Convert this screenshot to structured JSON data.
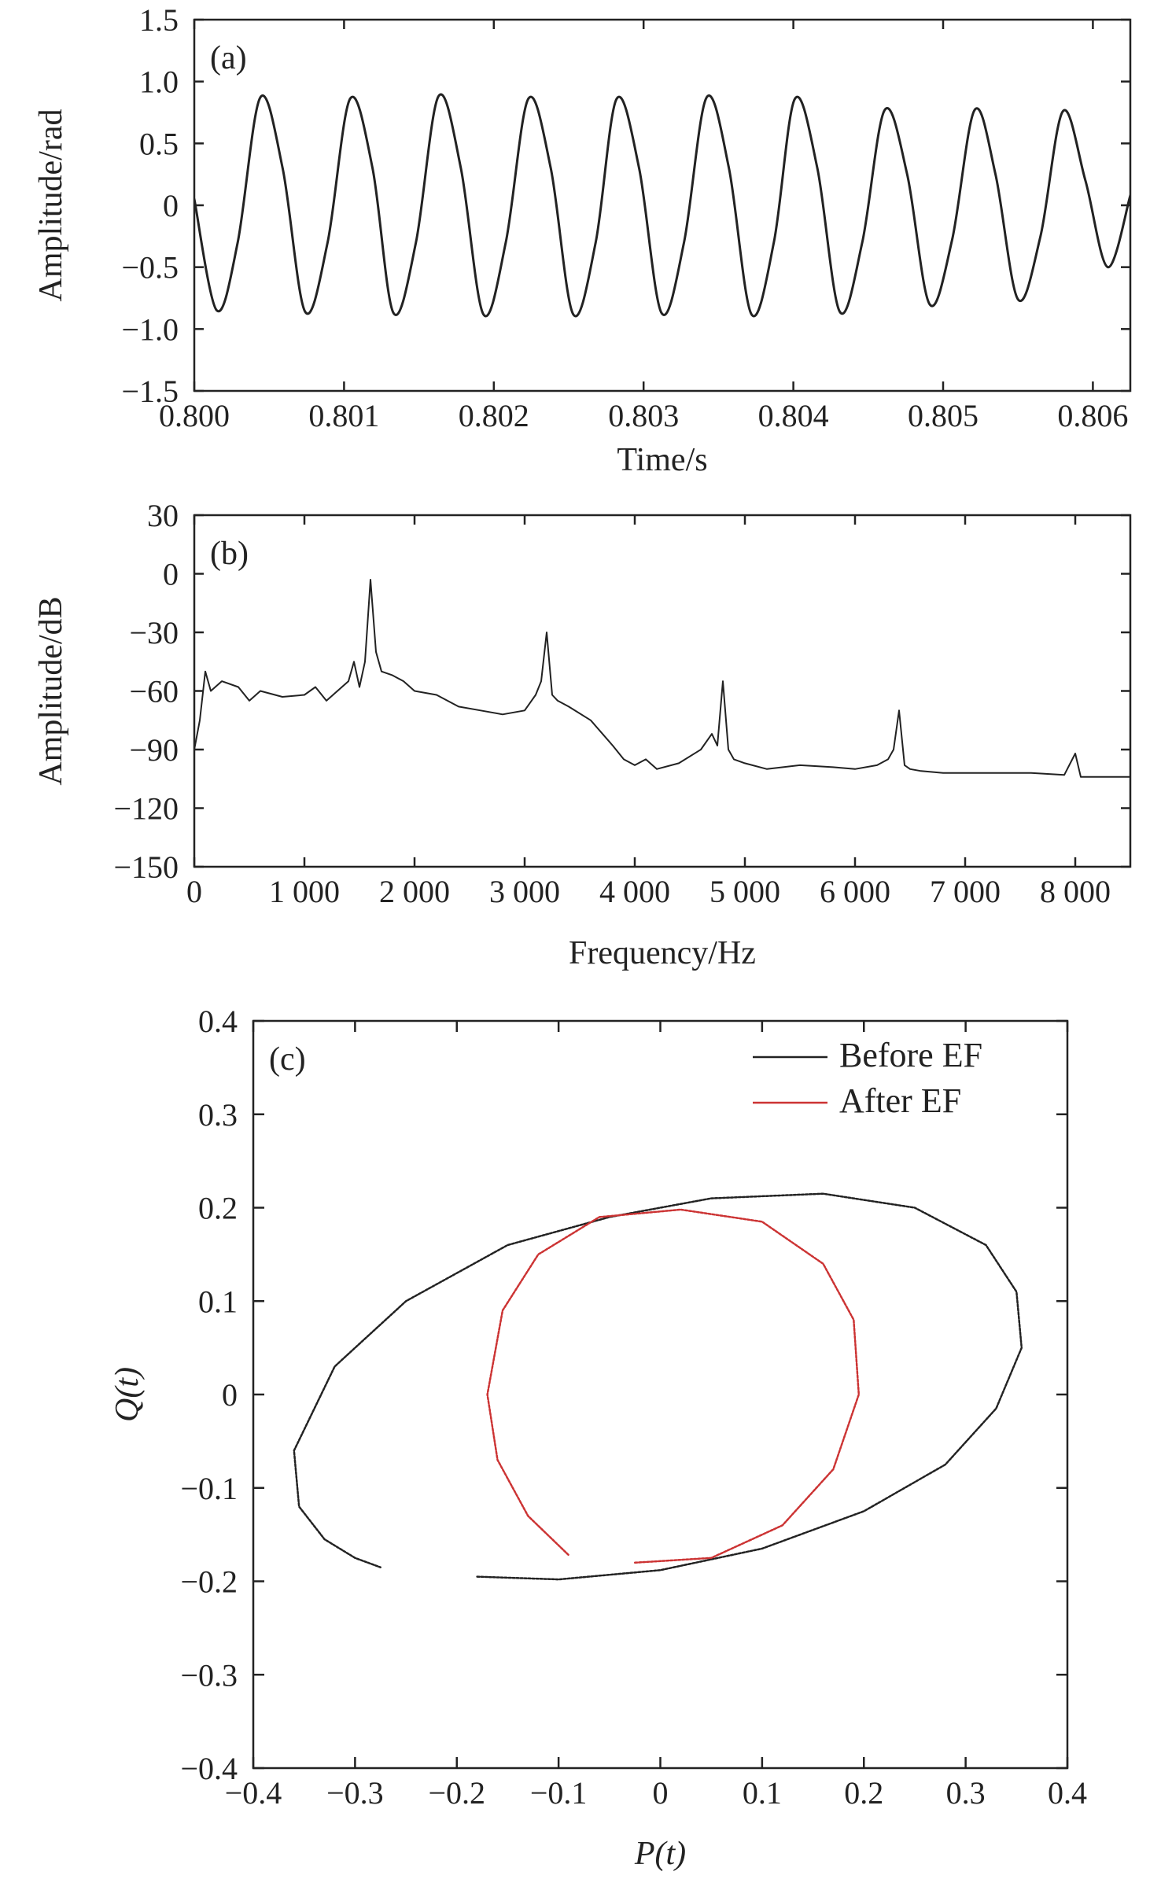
{
  "chart_data": [
    {
      "type": "line",
      "panel_label": "(a)",
      "xlabel": "Time/s",
      "ylabel": "Amplitude/rad",
      "xlim": [
        0.8,
        0.80625
      ],
      "ylim": [
        -1.5,
        1.5
      ],
      "x_ticks": [
        0.8,
        0.801,
        0.802,
        0.803,
        0.804,
        0.805,
        0.806
      ],
      "x_tick_labels": [
        "0.800",
        "0.801",
        "0.802",
        "0.803",
        "0.804",
        "0.805",
        "0.806"
      ],
      "y_ticks": [
        -1.5,
        -1.0,
        -0.5,
        0,
        0.5,
        1.0,
        1.5
      ],
      "y_tick_labels": [
        "−1.5",
        "−1.0",
        "−0.5",
        "0",
        "0.5",
        "1.0",
        "1.5"
      ],
      "series": [
        {
          "color": "#222222",
          "x": [
            0.8,
            0.80015,
            0.80029,
            0.80044,
            0.80059,
            0.80074,
            0.80089,
            0.80104,
            0.80119,
            0.80133,
            0.80148,
            0.80163,
            0.80178,
            0.80193,
            0.80208,
            0.80223,
            0.80238,
            0.80253,
            0.80268,
            0.80282,
            0.80297,
            0.80312,
            0.80327,
            0.80342,
            0.80357,
            0.80372,
            0.80387,
            0.80401,
            0.80416,
            0.80431,
            0.80446,
            0.80461,
            0.80476,
            0.80491,
            0.80506,
            0.80521,
            0.80535,
            0.8055,
            0.80565,
            0.8058,
            0.80595,
            0.8061,
            0.80625
          ],
          "y": [
            0.05,
            -0.85,
            -0.3,
            0.87,
            0.3,
            -0.86,
            -0.3,
            0.86,
            0.3,
            -0.87,
            -0.3,
            0.88,
            0.3,
            -0.88,
            -0.3,
            0.86,
            0.3,
            -0.88,
            -0.3,
            0.86,
            0.3,
            -0.87,
            -0.3,
            0.87,
            0.3,
            -0.88,
            -0.3,
            0.86,
            0.3,
            -0.86,
            -0.3,
            0.77,
            0.25,
            -0.8,
            -0.28,
            0.77,
            0.25,
            -0.76,
            -0.25,
            0.76,
            0.2,
            -0.5,
            0.08
          ]
        }
      ]
    },
    {
      "type": "line",
      "panel_label": "(b)",
      "xlabel": "Frequency/Hz",
      "ylabel": "Amplitude/dB",
      "xlim": [
        0,
        8500
      ],
      "ylim": [
        -150,
        30
      ],
      "x_ticks": [
        0,
        1000,
        2000,
        3000,
        4000,
        5000,
        6000,
        7000,
        8000
      ],
      "x_tick_labels": [
        "0",
        "1 000",
        "2 000",
        "3 000",
        "4 000",
        "5 000",
        "6 000",
        "7 000",
        "8 000"
      ],
      "y_ticks": [
        -150,
        -120,
        -90,
        -60,
        -30,
        0,
        30
      ],
      "y_tick_labels": [
        "−150",
        "−120",
        "−90",
        "−60",
        "−30",
        "0",
        "30"
      ],
      "series": [
        {
          "color": "#222222",
          "x": [
            0,
            50,
            100,
            150,
            250,
            400,
            500,
            600,
            800,
            1000,
            1100,
            1200,
            1300,
            1400,
            1450,
            1500,
            1550,
            1600,
            1650,
            1700,
            1800,
            1900,
            2000,
            2200,
            2400,
            2600,
            2800,
            3000,
            3100,
            3150,
            3200,
            3250,
            3300,
            3400,
            3600,
            3800,
            3900,
            4000,
            4100,
            4200,
            4400,
            4600,
            4700,
            4750,
            4800,
            4850,
            4900,
            5000,
            5200,
            5500,
            5800,
            6000,
            6200,
            6300,
            6350,
            6400,
            6450,
            6500,
            6600,
            6800,
            7000,
            7300,
            7600,
            7900,
            8000,
            8050,
            8200,
            8500
          ],
          "y": [
            -90,
            -75,
            -50,
            -60,
            -55,
            -58,
            -65,
            -60,
            -63,
            -62,
            -58,
            -65,
            -60,
            -55,
            -45,
            -58,
            -45,
            -3,
            -40,
            -50,
            -52,
            -55,
            -60,
            -62,
            -68,
            -70,
            -72,
            -70,
            -62,
            -55,
            -30,
            -62,
            -65,
            -68,
            -75,
            -88,
            -95,
            -98,
            -95,
            -100,
            -97,
            -90,
            -82,
            -88,
            -55,
            -90,
            -95,
            -97,
            -100,
            -98,
            -99,
            -100,
            -98,
            -95,
            -90,
            -70,
            -98,
            -100,
            -101,
            -102,
            -102,
            -102,
            -102,
            -103,
            -92,
            -104,
            -104,
            -104
          ]
        }
      ]
    },
    {
      "type": "scatter",
      "panel_label": "(c)",
      "xlabel": "P(t)",
      "ylabel": "Q(t)",
      "xlim": [
        -0.4,
        0.4
      ],
      "ylim": [
        -0.4,
        0.4
      ],
      "x_ticks": [
        -0.4,
        -0.3,
        -0.2,
        -0.1,
        0,
        0.1,
        0.2,
        0.3,
        0.4
      ],
      "x_tick_labels": [
        "−0.4",
        "−0.3",
        "−0.2",
        "−0.1",
        "0",
        "0.1",
        "0.2",
        "0.3",
        "0.4"
      ],
      "y_ticks": [
        -0.4,
        -0.3,
        -0.2,
        -0.1,
        0,
        0.1,
        0.2,
        0.3,
        0.4
      ],
      "y_tick_labels": [
        "−0.4",
        "−0.3",
        "−0.2",
        "−0.1",
        "0",
        "0.1",
        "0.2",
        "0.3",
        "0.4"
      ],
      "legend": "top-right",
      "series": [
        {
          "name": "Before EF",
          "color": "#222222",
          "x": [
            -0.18,
            -0.1,
            0.0,
            0.1,
            0.2,
            0.28,
            0.33,
            0.355,
            0.35,
            0.32,
            0.25,
            0.16,
            0.05,
            -0.05,
            -0.15,
            -0.25,
            -0.32,
            -0.36,
            -0.355,
            -0.33,
            -0.3,
            -0.275
          ],
          "y": [
            -0.195,
            -0.198,
            -0.188,
            -0.165,
            -0.125,
            -0.075,
            -0.015,
            0.05,
            0.11,
            0.16,
            0.2,
            0.215,
            0.21,
            0.19,
            0.16,
            0.1,
            0.03,
            -0.06,
            -0.12,
            -0.155,
            -0.175,
            -0.185
          ]
        },
        {
          "name": "After EF",
          "color": "#cc3333",
          "x": [
            -0.025,
            0.05,
            0.12,
            0.17,
            0.195,
            0.19,
            0.16,
            0.1,
            0.02,
            -0.06,
            -0.12,
            -0.155,
            -0.17,
            -0.16,
            -0.13,
            -0.09
          ],
          "y": [
            -0.18,
            -0.175,
            -0.14,
            -0.08,
            0.0,
            0.08,
            0.14,
            0.185,
            0.198,
            0.19,
            0.15,
            0.09,
            0.0,
            -0.07,
            -0.13,
            -0.172
          ]
        }
      ]
    }
  ]
}
